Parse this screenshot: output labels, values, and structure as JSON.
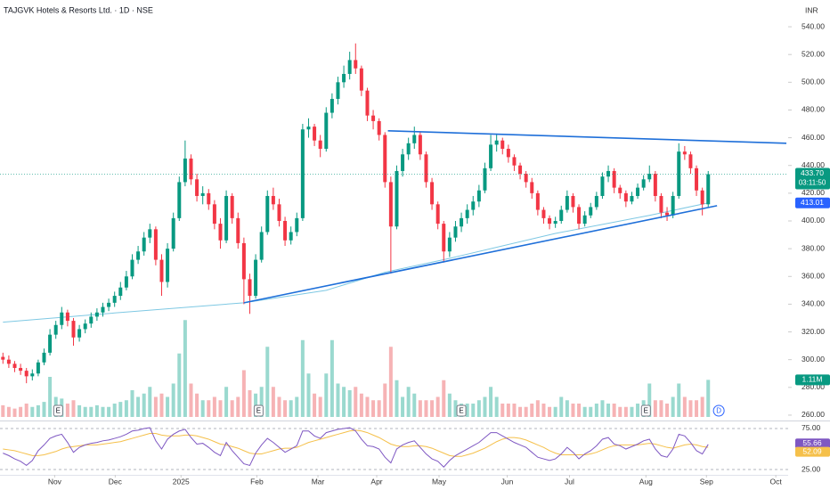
{
  "header": {
    "title": "TAJGVK Hotels & Resorts Ltd. · 1D · NSE",
    "currency": "INR"
  },
  "chart_data": {
    "type": "candlestick",
    "up_color": "#089981",
    "down_color": "#f23645",
    "xlim": [
      -0.5,
      133.6
    ],
    "xticks": [
      {
        "value": 8.8,
        "label": "Nov"
      },
      {
        "value": 19.1,
        "label": "Dec"
      },
      {
        "value": 30.3,
        "label": "2025"
      },
      {
        "value": 43.2,
        "label": "Feb"
      },
      {
        "value": 53.6,
        "label": "Mar"
      },
      {
        "value": 63.6,
        "label": "Apr"
      },
      {
        "value": 74.2,
        "label": "May"
      },
      {
        "value": 85.8,
        "label": "Jun"
      },
      {
        "value": 96.4,
        "label": "Jul"
      },
      {
        "value": 109.4,
        "label": "Aug"
      },
      {
        "value": 119.7,
        "label": "Sep"
      },
      {
        "value": 131.5,
        "label": "Oct"
      }
    ],
    "ylim": [
      257.4,
      559.3
    ],
    "yticks": [
      {
        "value": 260,
        "label": "260.00"
      },
      {
        "value": 280,
        "label": "280.00"
      },
      {
        "value": 300,
        "label": "300.00"
      },
      {
        "value": 320,
        "label": "320.00"
      },
      {
        "value": 340,
        "label": "340.00"
      },
      {
        "value": 360,
        "label": "360.00"
      },
      {
        "value": 380,
        "label": "380.00"
      },
      {
        "value": 400,
        "label": "400.00"
      },
      {
        "value": 420,
        "label": "420.00"
      },
      {
        "value": 440,
        "label": "440.00"
      },
      {
        "value": 460,
        "label": "460.00"
      },
      {
        "value": 480,
        "label": "480.00"
      },
      {
        "value": 500,
        "label": "500.00"
      },
      {
        "value": 520,
        "label": "520.00"
      },
      {
        "value": 540,
        "label": "540.00"
      }
    ],
    "ohlc": [
      [
        302,
        305,
        297,
        300
      ],
      [
        300,
        303,
        294,
        297
      ],
      [
        297,
        299,
        291,
        294
      ],
      [
        294,
        297,
        289,
        292
      ],
      [
        292,
        294,
        283,
        288
      ],
      [
        288,
        293,
        285,
        290
      ],
      [
        290,
        300,
        288,
        298
      ],
      [
        298,
        308,
        296,
        305
      ],
      [
        305,
        322,
        303,
        318
      ],
      [
        318,
        328,
        315,
        325
      ],
      [
        325,
        338,
        322,
        334
      ],
      [
        334,
        336,
        324,
        328
      ],
      [
        328,
        330,
        310,
        316
      ],
      [
        316,
        325,
        313,
        322
      ],
      [
        322,
        329,
        319,
        326
      ],
      [
        326,
        334,
        323,
        331
      ],
      [
        331,
        337,
        328,
        334
      ],
      [
        334,
        341,
        331,
        338
      ],
      [
        338,
        344,
        335,
        341
      ],
      [
        341,
        349,
        338,
        346
      ],
      [
        346,
        356,
        343,
        352
      ],
      [
        352,
        364,
        350,
        360
      ],
      [
        360,
        376,
        358,
        372
      ],
      [
        372,
        382,
        369,
        378
      ],
      [
        378,
        392,
        375,
        388
      ],
      [
        388,
        398,
        384,
        394
      ],
      [
        394,
        396,
        368,
        372
      ],
      [
        372,
        376,
        346,
        356
      ],
      [
        356,
        384,
        352,
        380
      ],
      [
        380,
        406,
        378,
        402
      ],
      [
        402,
        432,
        400,
        428
      ],
      [
        428,
        458,
        425,
        445
      ],
      [
        445,
        448,
        426,
        430
      ],
      [
        430,
        434,
        414,
        418
      ],
      [
        418,
        425,
        412,
        420
      ],
      [
        420,
        423,
        408,
        412
      ],
      [
        412,
        415,
        394,
        398
      ],
      [
        398,
        402,
        380,
        386
      ],
      [
        386,
        422,
        384,
        418
      ],
      [
        418,
        420,
        398,
        402
      ],
      [
        402,
        406,
        380,
        384
      ],
      [
        384,
        388,
        340,
        358
      ],
      [
        358,
        362,
        333,
        346
      ],
      [
        346,
        376,
        344,
        372
      ],
      [
        372,
        396,
        370,
        392
      ],
      [
        392,
        422,
        390,
        418
      ],
      [
        418,
        424,
        408,
        412
      ],
      [
        412,
        416,
        396,
        400
      ],
      [
        400,
        403,
        382,
        386
      ],
      [
        386,
        396,
        383,
        392
      ],
      [
        392,
        406,
        389,
        402
      ],
      [
        402,
        470,
        400,
        466
      ],
      [
        466,
        474,
        460,
        468
      ],
      [
        468,
        470,
        454,
        458
      ],
      [
        458,
        462,
        446,
        452
      ],
      [
        452,
        482,
        450,
        478
      ],
      [
        478,
        492,
        474,
        488
      ],
      [
        488,
        504,
        484,
        500
      ],
      [
        500,
        512,
        496,
        506
      ],
      [
        506,
        522,
        502,
        516
      ],
      [
        516,
        528,
        506,
        510
      ],
      [
        510,
        512,
        490,
        494
      ],
      [
        494,
        496,
        472,
        476
      ],
      [
        476,
        480,
        466,
        472
      ],
      [
        472,
        474,
        458,
        462
      ],
      [
        462,
        464,
        424,
        428
      ],
      [
        428,
        432,
        362,
        396
      ],
      [
        396,
        440,
        394,
        436
      ],
      [
        436,
        452,
        432,
        448
      ],
      [
        448,
        460,
        444,
        456
      ],
      [
        456,
        468,
        452,
        462
      ],
      [
        462,
        464,
        444,
        448
      ],
      [
        448,
        450,
        424,
        428
      ],
      [
        428,
        431,
        408,
        412
      ],
      [
        412,
        414,
        394,
        398
      ],
      [
        398,
        400,
        370,
        378
      ],
      [
        378,
        392,
        374,
        388
      ],
      [
        388,
        400,
        385,
        396
      ],
      [
        396,
        406,
        392,
        402
      ],
      [
        402,
        412,
        398,
        408
      ],
      [
        408,
        418,
        404,
        414
      ],
      [
        414,
        426,
        410,
        422
      ],
      [
        422,
        442,
        420,
        438
      ],
      [
        438,
        462,
        436,
        455
      ],
      [
        455,
        463,
        450,
        458
      ],
      [
        458,
        460,
        448,
        452
      ],
      [
        452,
        455,
        442,
        446
      ],
      [
        446,
        448,
        436,
        440
      ],
      [
        440,
        442,
        430,
        434
      ],
      [
        434,
        436,
        424,
        428
      ],
      [
        428,
        431,
        416,
        420
      ],
      [
        420,
        422,
        404,
        408
      ],
      [
        408,
        410,
        398,
        402
      ],
      [
        402,
        404,
        394,
        398
      ],
      [
        398,
        403,
        395,
        400
      ],
      [
        400,
        411,
        398,
        408
      ],
      [
        408,
        422,
        406,
        418
      ],
      [
        418,
        420,
        406,
        410
      ],
      [
        410,
        412,
        394,
        398
      ],
      [
        398,
        407,
        396,
        404
      ],
      [
        404,
        413,
        402,
        410
      ],
      [
        410,
        421,
        408,
        418
      ],
      [
        418,
        435,
        416,
        432
      ],
      [
        432,
        440,
        428,
        436
      ],
      [
        436,
        438,
        420,
        424
      ],
      [
        424,
        426,
        416,
        420
      ],
      [
        420,
        422,
        410,
        414
      ],
      [
        414,
        421,
        412,
        418
      ],
      [
        418,
        427,
        416,
        424
      ],
      [
        424,
        433,
        422,
        430
      ],
      [
        430,
        440,
        428,
        434
      ],
      [
        434,
        436,
        414,
        418
      ],
      [
        418,
        420,
        402,
        406
      ],
      [
        406,
        410,
        400,
        404
      ],
      [
        404,
        421,
        402,
        418
      ],
      [
        418,
        456,
        416,
        450
      ],
      [
        450,
        454,
        444,
        448
      ],
      [
        448,
        450,
        434,
        438
      ],
      [
        438,
        440,
        418,
        422
      ],
      [
        422,
        424,
        404,
        412
      ],
      [
        412,
        436,
        410,
        433.7
      ]
    ],
    "price_badge": {
      "label": "433.70",
      "countdown": "03:11:50",
      "color": "#089981"
    },
    "ma": {
      "color": "#7ec8e3",
      "x": [
        0,
        20,
        41,
        55,
        65,
        76,
        94,
        110,
        120
      ],
      "values": [
        327,
        334,
        341,
        350,
        363,
        373,
        391,
        404,
        413.01
      ],
      "badge_color": "#2962ff"
    },
    "trendlines": [
      {
        "color": "#1e6fd9",
        "x": [
          65.5,
          133.3
        ],
        "y": [
          465,
          456
        ]
      },
      {
        "color": "#1e6fd9",
        "x": [
          41,
          121.5
        ],
        "y": [
          341,
          411
        ]
      }
    ],
    "volume": {
      "ylim": [
        0,
        3.2
      ],
      "up_color": "#9ad9cf",
      "down_color": "#f6b3b5",
      "label": "1.11M",
      "values": [
        0.35,
        0.3,
        0.25,
        0.3,
        0.4,
        0.3,
        0.35,
        0.45,
        1.2,
        0.6,
        0.55,
        0.4,
        0.5,
        0.35,
        0.3,
        0.3,
        0.35,
        0.3,
        0.3,
        0.4,
        0.45,
        0.5,
        0.8,
        0.6,
        0.7,
        0.9,
        0.6,
        0.7,
        0.6,
        1.0,
        1.9,
        2.9,
        1.0,
        0.7,
        0.5,
        0.5,
        0.6,
        0.5,
        0.9,
        0.5,
        0.6,
        1.4,
        0.8,
        0.7,
        0.9,
        2.1,
        0.9,
        0.6,
        0.5,
        0.5,
        0.6,
        2.3,
        1.3,
        0.7,
        0.6,
        1.3,
        2.3,
        1.0,
        0.9,
        0.8,
        0.9,
        0.7,
        0.6,
        0.5,
        0.5,
        1.0,
        2.1,
        1.1,
        0.6,
        0.9,
        0.7,
        0.5,
        0.5,
        0.5,
        0.6,
        1.1,
        0.7,
        0.5,
        0.4,
        0.4,
        0.4,
        0.5,
        0.6,
        0.9,
        0.6,
        0.4,
        0.4,
        0.4,
        0.3,
        0.3,
        0.4,
        0.5,
        0.4,
        0.3,
        0.3,
        0.6,
        0.5,
        0.4,
        0.4,
        0.3,
        0.3,
        0.4,
        0.5,
        0.4,
        0.4,
        0.3,
        0.3,
        0.3,
        0.4,
        0.5,
        1.0,
        0.5,
        0.5,
        0.4,
        0.6,
        1.0,
        0.6,
        0.5,
        0.5,
        0.6,
        1.11
      ]
    },
    "events": [
      {
        "x": 9.4,
        "label": "E"
      },
      {
        "x": 43.5,
        "label": "E"
      },
      {
        "x": 78,
        "label": "E"
      },
      {
        "x": 109.4,
        "label": "E"
      }
    ],
    "dividend": {
      "x": 121.8,
      "label": "D"
    },
    "rsi": {
      "ylim": [
        19.6,
        82.6
      ],
      "yticks": [
        {
          "value": 25,
          "label": "25.00"
        },
        {
          "value": 75,
          "label": "75.00"
        }
      ],
      "color": "#7e57c2",
      "ma_color": "#f5c04a",
      "values": [
        45,
        42,
        38,
        35,
        30,
        36,
        48,
        55,
        63,
        66,
        68,
        58,
        46,
        52,
        55,
        57,
        58,
        60,
        61,
        63,
        65,
        68,
        72,
        73,
        75,
        76,
        60,
        50,
        62,
        68,
        72,
        74,
        64,
        56,
        57,
        52,
        46,
        42,
        58,
        48,
        40,
        32,
        30,
        45,
        55,
        63,
        58,
        52,
        46,
        50,
        54,
        72,
        72,
        66,
        63,
        70,
        72,
        74,
        75,
        76,
        72,
        62,
        54,
        53,
        50,
        40,
        33,
        50,
        55,
        58,
        60,
        52,
        44,
        38,
        35,
        28,
        36,
        42,
        46,
        50,
        54,
        58,
        64,
        70,
        70,
        66,
        62,
        58,
        55,
        52,
        46,
        40,
        38,
        36,
        38,
        44,
        52,
        46,
        38,
        44,
        48,
        54,
        62,
        64,
        56,
        54,
        50,
        53,
        56,
        60,
        62,
        50,
        42,
        40,
        50,
        68,
        66,
        58,
        48,
        44,
        55.66
      ],
      "ma": [
        50,
        49,
        48,
        46,
        44,
        42,
        42,
        43,
        45,
        47,
        50,
        52,
        53,
        54,
        55,
        55,
        55,
        56,
        57,
        58,
        59,
        61,
        63,
        65,
        67,
        69,
        69,
        67,
        66,
        66,
        66,
        67,
        67,
        66,
        64,
        62,
        59,
        56,
        55,
        53,
        51,
        48,
        45,
        44,
        44,
        46,
        48,
        50,
        51,
        51,
        52,
        55,
        58,
        60,
        62,
        64,
        66,
        68,
        70,
        72,
        73,
        72,
        70,
        67,
        64,
        60,
        56,
        54,
        53,
        53,
        54,
        54,
        53,
        51,
        48,
        45,
        42,
        41,
        41,
        43,
        45,
        48,
        51,
        55,
        59,
        62,
        64,
        64,
        63,
        61,
        58,
        55,
        52,
        48,
        45,
        43,
        43,
        43,
        43,
        43,
        44,
        46,
        49,
        52,
        54,
        55,
        55,
        55,
        55,
        56,
        57,
        56,
        54,
        52,
        51,
        53,
        55,
        56,
        55,
        53,
        52.09
      ]
    }
  }
}
